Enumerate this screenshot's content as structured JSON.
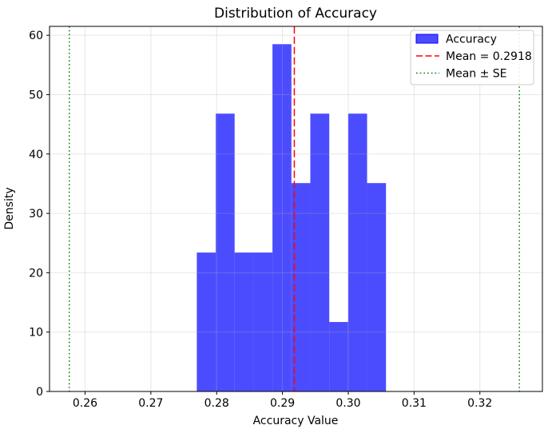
{
  "chart_data": {
    "type": "bar",
    "subtype": "histogram",
    "title": "Distribution of Accuracy",
    "xlabel": "Accuracy Value",
    "ylabel": "Density",
    "series_label": "Accuracy",
    "bin_edges": [
      0.27698,
      0.27986,
      0.28273,
      0.28561,
      0.28848,
      0.29136,
      0.29423,
      0.29711,
      0.29998,
      0.30286,
      0.30573
    ],
    "densities": [
      23.4,
      46.8,
      23.4,
      23.4,
      58.5,
      35.1,
      46.8,
      11.7,
      46.8,
      35.1
    ],
    "bar_color": "#0000ff",
    "bar_alpha": 0.7,
    "mean_line": {
      "x": 0.2918,
      "color": "#ff0000",
      "style": "dashed",
      "label": "Mean = 0.2918"
    },
    "se_lines": {
      "x": [
        0.2576,
        0.326
      ],
      "color": "#008000",
      "style": "dotted",
      "label": "Mean ± SE"
    },
    "xlim": [
      0.2546,
      0.3295
    ],
    "ylim": [
      0,
      61.5
    ],
    "x_ticks": [
      0.26,
      0.27,
      0.28,
      0.29,
      0.3,
      0.31,
      0.32
    ],
    "x_tick_labels": [
      "0.26",
      "0.27",
      "0.28",
      "0.29",
      "0.30",
      "0.31",
      "0.32"
    ],
    "y_ticks": [
      0,
      10,
      20,
      30,
      40,
      50,
      60
    ],
    "y_tick_labels": [
      "0",
      "10",
      "20",
      "30",
      "40",
      "50",
      "60"
    ],
    "grid": true,
    "grid_color": "#b0b0b0",
    "grid_alpha": 0.3,
    "legend_position": "upper right"
  },
  "legend": {
    "items": [
      {
        "type": "patch",
        "color": "#0000ff",
        "opacity": 0.7,
        "label": "Accuracy"
      },
      {
        "type": "dashed-line",
        "color": "#ff0000",
        "opacity": 1,
        "label": "Mean = 0.2918"
      },
      {
        "type": "dotted-line",
        "color": "#008000",
        "opacity": 1,
        "label": "Mean ± SE"
      }
    ]
  }
}
